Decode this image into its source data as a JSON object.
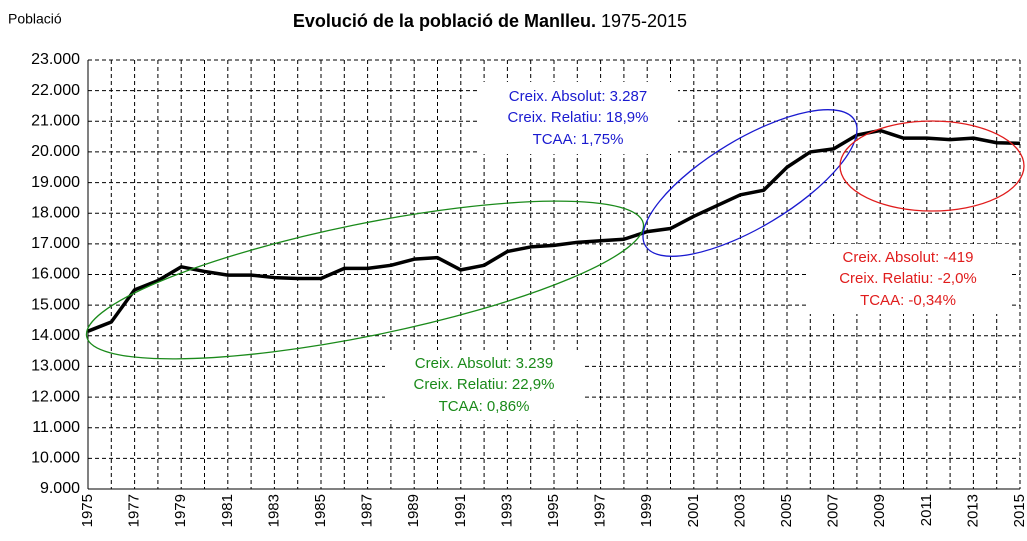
{
  "chart_data": {
    "type": "line",
    "title": "Evolució de la població de Manlleu.",
    "subtitle": "1975-2015",
    "y_label": "Població",
    "x": [
      1975,
      1976,
      1977,
      1978,
      1979,
      1980,
      1981,
      1982,
      1983,
      1984,
      1985,
      1986,
      1987,
      1988,
      1989,
      1990,
      1991,
      1992,
      1993,
      1994,
      1995,
      1996,
      1997,
      1998,
      1999,
      2000,
      2001,
      2002,
      2003,
      2004,
      2005,
      2006,
      2007,
      2008,
      2009,
      2010,
      2011,
      2012,
      2013,
      2014,
      2015
    ],
    "series": [
      {
        "name": "Població",
        "color": "#000000",
        "values": [
          14150,
          14450,
          15500,
          15800,
          16250,
          16100,
          15980,
          15980,
          15900,
          15870,
          15870,
          16200,
          16200,
          16300,
          16500,
          16550,
          16150,
          16300,
          16750,
          16900,
          16950,
          17050,
          17100,
          17150,
          17400,
          17500,
          17900,
          18250,
          18600,
          18750,
          19500,
          20000,
          20100,
          20550,
          20700,
          20450,
          20450,
          20400,
          20450,
          20300,
          20280
        ]
      }
    ],
    "xlim": [
      1975,
      2015
    ],
    "xticks": [
      1975,
      1977,
      1979,
      1981,
      1983,
      1985,
      1987,
      1989,
      1991,
      1993,
      1995,
      1997,
      1999,
      2001,
      2003,
      2005,
      2007,
      2009,
      2011,
      2013,
      2015
    ],
    "xminorticks": [
      1976,
      1978,
      1980,
      1982,
      1984,
      1986,
      1988,
      1990,
      1992,
      1994,
      1996,
      1998,
      2000,
      2002,
      2004,
      2006,
      2008,
      2010,
      2012,
      2014
    ],
    "ylim": [
      9000,
      23000
    ],
    "yticks": [
      {
        "value": 9000,
        "label": "9.000"
      },
      {
        "value": 10000,
        "label": "10.000"
      },
      {
        "value": 11000,
        "label": "11.000"
      },
      {
        "value": 12000,
        "label": "12.000"
      },
      {
        "value": 13000,
        "label": "13.000"
      },
      {
        "value": 14000,
        "label": "14.000"
      },
      {
        "value": 15000,
        "label": "15.000"
      },
      {
        "value": 16000,
        "label": "16.000"
      },
      {
        "value": 17000,
        "label": "17.000"
      },
      {
        "value": 18000,
        "label": "18.000"
      },
      {
        "value": 19000,
        "label": "19.000"
      },
      {
        "value": 20000,
        "label": "20.000"
      },
      {
        "value": 21000,
        "label": "21.000"
      },
      {
        "value": 22000,
        "label": "22.000"
      },
      {
        "value": 23000,
        "label": "23.000"
      }
    ],
    "grid": true,
    "annotations": [
      {
        "color": "#1a1ad0",
        "lines": [
          "Creix. Absolut: 3.287",
          "Creix. Relatiu: 18,9%",
          "TCAA: 1,75%"
        ]
      },
      {
        "color": "#e01c1c",
        "lines": [
          "Creix. Absolut: -419",
          "Creix. Relatiu: -2,0%",
          "TCAA: -0,34%"
        ]
      },
      {
        "color": "#1a8a1a",
        "lines": [
          "Creix. Absolut: 3.239",
          "Creix. Relatiu: 22,9%",
          "TCAA: 0,86%"
        ]
      }
    ]
  }
}
